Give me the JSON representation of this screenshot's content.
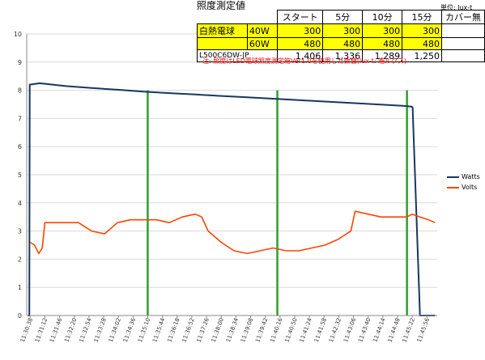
{
  "table": {
    "title": "照度測定値",
    "unit": "単位: lux-t",
    "headers": [
      "",
      "",
      "スタート",
      "5分",
      "10分",
      "15分",
      "カバー無"
    ],
    "rows": [
      {
        "c0": "白熱電球",
        "c1": "40W",
        "values": [
          "300",
          "300",
          "300",
          "300"
        ],
        "extra": ""
      },
      {
        "c0": "",
        "c1": "60W",
        "values": [
          "480",
          "480",
          "480",
          "480"
        ],
        "extra": ""
      },
      {
        "c0": "L500C6DW-JP",
        "c1": "",
        "values": [
          "1,406",
          "1,336",
          "1,289",
          "1,250"
        ],
        "extra": ""
      }
    ]
  },
  "note": "注: 照度はLED電球照度測定箱Ver1.0を使用した数値(lux-t: 箱ルクス)",
  "colors": {
    "watts": "#17375e",
    "volts": "#ff4500",
    "marker": "#2ca02c",
    "grid": "#d9d9d9",
    "yellow": "#ffff00"
  },
  "chart_data": {
    "type": "line",
    "title": "",
    "xlabel": "",
    "ylabel": "",
    "ylim": [
      0,
      10
    ],
    "yticks": [
      0,
      1,
      2,
      3,
      4,
      5,
      6,
      7,
      8,
      9,
      10
    ],
    "grid": "horizontal",
    "legend": "right",
    "x_ticks": [
      "11:30:38",
      "11:31:12",
      "11:31:46",
      "11:32:20",
      "11:32:54",
      "11:33:28",
      "11:34:02",
      "11:34:36",
      "11:35:10",
      "11:35:44",
      "11:36:18",
      "11:36:52",
      "11:37:26",
      "11:38:00",
      "11:38:34",
      "11:39:08",
      "11:39:42",
      "11:40:16",
      "11:40:50",
      "11:41:24",
      "11:41:58",
      "11:42:32",
      "11:43:06",
      "11:43:40",
      "11:44:14",
      "11:44:48",
      "11:45:22",
      "11:45:56"
    ],
    "x_range": [
      "11:30:30",
      "11:46:20"
    ],
    "markers": [
      "11:35:10",
      "11:40:10",
      "11:45:10"
    ],
    "series": [
      {
        "name": "Watts",
        "points": [
          [
            "11:30:33",
            0
          ],
          [
            "11:30:36",
            0
          ],
          [
            "11:30:37",
            8.2
          ],
          [
            "11:31:00",
            8.25
          ],
          [
            "11:32:00",
            8.15
          ],
          [
            "11:33:00",
            8.08
          ],
          [
            "11:34:00",
            8.02
          ],
          [
            "11:35:00",
            7.95
          ],
          [
            "11:36:00",
            7.9
          ],
          [
            "11:37:00",
            7.85
          ],
          [
            "11:38:00",
            7.8
          ],
          [
            "11:39:00",
            7.75
          ],
          [
            "11:40:00",
            7.7
          ],
          [
            "11:41:00",
            7.65
          ],
          [
            "11:42:00",
            7.6
          ],
          [
            "11:43:00",
            7.55
          ],
          [
            "11:44:00",
            7.5
          ],
          [
            "11:45:00",
            7.45
          ],
          [
            "11:45:20",
            7.42
          ],
          [
            "11:45:23",
            7.4
          ],
          [
            "11:45:40",
            0
          ],
          [
            "11:46:15",
            0
          ]
        ]
      },
      {
        "name": "Volts",
        "points": [
          [
            "11:30:38",
            2.6
          ],
          [
            "11:30:48",
            2.5
          ],
          [
            "11:30:58",
            2.2
          ],
          [
            "11:31:06",
            2.4
          ],
          [
            "11:31:12",
            3.3
          ],
          [
            "11:32:00",
            3.3
          ],
          [
            "11:32:30",
            3.3
          ],
          [
            "11:33:00",
            3.0
          ],
          [
            "11:33:30",
            2.9
          ],
          [
            "11:34:00",
            3.3
          ],
          [
            "11:34:30",
            3.4
          ],
          [
            "11:35:00",
            3.4
          ],
          [
            "11:35:30",
            3.4
          ],
          [
            "11:36:00",
            3.3
          ],
          [
            "11:36:30",
            3.5
          ],
          [
            "11:37:00",
            3.6
          ],
          [
            "11:37:15",
            3.5
          ],
          [
            "11:37:30",
            3.0
          ],
          [
            "11:38:00",
            2.6
          ],
          [
            "11:38:30",
            2.3
          ],
          [
            "11:39:00",
            2.2
          ],
          [
            "11:39:30",
            2.3
          ],
          [
            "11:40:00",
            2.4
          ],
          [
            "11:40:30",
            2.3
          ],
          [
            "11:41:00",
            2.3
          ],
          [
            "11:41:30",
            2.4
          ],
          [
            "11:42:00",
            2.5
          ],
          [
            "11:42:30",
            2.7
          ],
          [
            "11:43:00",
            3.0
          ],
          [
            "11:43:10",
            3.7
          ],
          [
            "11:43:40",
            3.6
          ],
          [
            "11:44:10",
            3.5
          ],
          [
            "11:44:40",
            3.5
          ],
          [
            "11:45:10",
            3.5
          ],
          [
            "11:45:22",
            3.6
          ],
          [
            "11:45:40",
            3.5
          ],
          [
            "11:46:00",
            3.4
          ],
          [
            "11:46:15",
            3.3
          ]
        ]
      }
    ]
  }
}
